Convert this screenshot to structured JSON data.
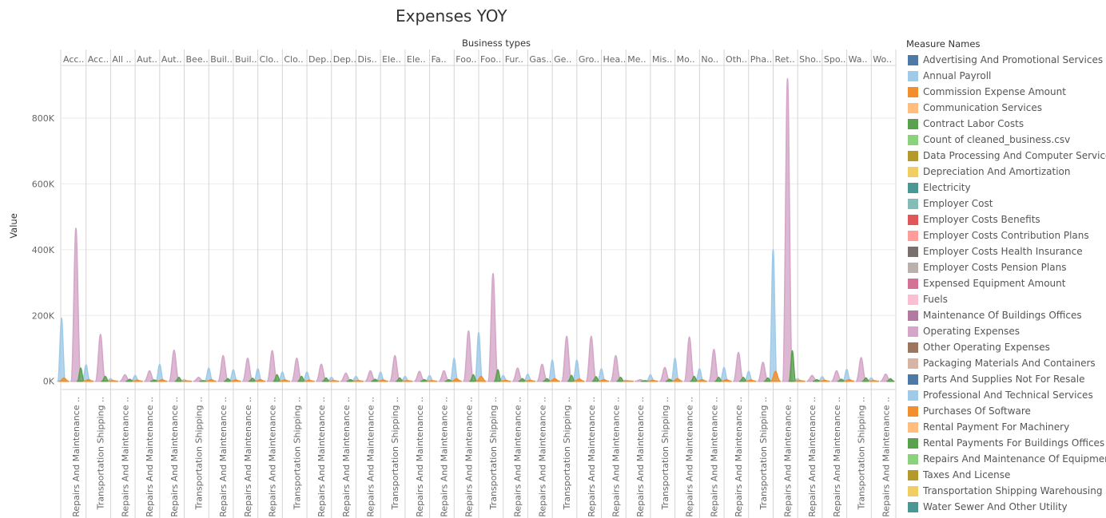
{
  "chart_data": {
    "type": "area",
    "title": "Expenses YOY",
    "column_header_title": "Business types",
    "ylabel": "Value",
    "ylim": [
      -25000,
      960000
    ],
    "yticks": [
      0,
      200000,
      400000,
      600000,
      800000
    ],
    "ytick_labels": [
      "0K",
      "200K",
      "400K",
      "600K",
      "800K"
    ],
    "grid": true,
    "legend_position": "right",
    "legend_title": "Measure Names",
    "business_types": [
      "Acc..",
      "Acc..",
      "All ..",
      "Aut..",
      "Aut..",
      "Bee..",
      "Buil..",
      "Buil..",
      "Clo..",
      "Clo..",
      "Dep..",
      "Dep..",
      "Dis..",
      "Ele..",
      "Ele..",
      "Fa..",
      "Foo..",
      "Foo..",
      "Fur..",
      "Gas..",
      "Ge..",
      "Gro..",
      "Hea..",
      "Me..",
      "Mis..",
      "Mo..",
      "No..",
      "Oth..",
      "Pha..",
      "Ret..",
      "Sho..",
      "Spo..",
      "Wa..",
      "Wo.."
    ],
    "row_labels": [
      "Repairs And Maintenance ..",
      "Transportation Shipping ..",
      "Repairs And Maintenance ..",
      "Repairs And Maintenance ..",
      "Repairs And Maintenance ..",
      "Transportation Shipping ..",
      "Repairs And Maintenance ..",
      "Repairs And Maintenance ..",
      "Repairs And Maintenance ..",
      "Transportation Shipping ..",
      "Repairs And Maintenance ..",
      "Repairs And Maintenance ..",
      "Repairs And Maintenance ..",
      "Transportation Shipping ..",
      "Repairs And Maintenance ..",
      "Repairs And Maintenance ..",
      "Repairs And Maintenance ..",
      "Transportation Shipping ..",
      "Repairs And Maintenance ..",
      "Repairs And Maintenance ..",
      "Transportation Shipping ..",
      "Repairs And Maintenance ..",
      "Repairs And Maintenance ..",
      "Repairs And Maintenance ..",
      "Transportation Shipping ..",
      "Repairs And Maintenance ..",
      "Repairs And Maintenance ..",
      "Repairs And Maintenance ..",
      "Transportation Shipping ..",
      "Repairs And Maintenance ..",
      "Repairs And Maintenance ..",
      "Repairs And Maintenance ..",
      "Transportation Shipping ..",
      "Repairs And Maintenance .."
    ],
    "measures": [
      {
        "name": "Advertising And Promotional Services",
        "color": "#4e79a7"
      },
      {
        "name": "Annual Payroll",
        "color": "#a0cbe8"
      },
      {
        "name": "Commission Expense Amount",
        "color": "#f28e2b"
      },
      {
        "name": "Communication Services",
        "color": "#ffbe7d"
      },
      {
        "name": "Contract Labor Costs",
        "color": "#59a14f"
      },
      {
        "name": "Count of cleaned_business.csv",
        "color": "#8cd17d"
      },
      {
        "name": "Data Processing And Computer Services",
        "color": "#b6992d"
      },
      {
        "name": "Depreciation And Amortization",
        "color": "#f1ce63"
      },
      {
        "name": "Electricity",
        "color": "#499894"
      },
      {
        "name": "Employer Cost",
        "color": "#86bcb6"
      },
      {
        "name": "Employer Costs Benefits",
        "color": "#e15759"
      },
      {
        "name": "Employer Costs Contribution Plans",
        "color": "#ff9d9a"
      },
      {
        "name": "Employer Costs Health Insurance",
        "color": "#79706e"
      },
      {
        "name": "Employer Costs Pension Plans",
        "color": "#bab0ac"
      },
      {
        "name": "Expensed Equipment Amount",
        "color": "#d37295"
      },
      {
        "name": "Fuels",
        "color": "#fabfd2"
      },
      {
        "name": "Maintenance Of Buildings Offices",
        "color": "#b07aa1"
      },
      {
        "name": "Operating Expenses",
        "color": "#d4a6c8"
      },
      {
        "name": "Other Operating Expenses",
        "color": "#9d7660"
      },
      {
        "name": "Packaging Materials And Containers",
        "color": "#d7b5a6"
      },
      {
        "name": "Parts And Supplies Not For Resale",
        "color": "#4e79a7"
      },
      {
        "name": "Professional And Technical Services",
        "color": "#a0cbe8"
      },
      {
        "name": "Purchases Of Software",
        "color": "#f28e2b"
      },
      {
        "name": "Rental Payment For Machinery",
        "color": "#ffbe7d"
      },
      {
        "name": "Rental Payments For Buildings Offices",
        "color": "#59a14f"
      },
      {
        "name": "Repairs And Maintenance Of Equipment",
        "color": "#8cd17d"
      },
      {
        "name": "Taxes And License",
        "color": "#b6992d"
      },
      {
        "name": "Transportation Shipping Warehousing",
        "color": "#f1ce63"
      },
      {
        "name": "Water Sewer And Other Utility",
        "color": "#499894"
      }
    ],
    "series": [
      {
        "name": "Operating Expenses",
        "color": "#d4a6c8",
        "values": [
          465000,
          143000,
          20000,
          32000,
          95000,
          12000,
          78000,
          70000,
          93000,
          70000,
          52000,
          25000,
          32000,
          78000,
          30000,
          32000,
          153000,
          328000,
          40000,
          52000,
          137000,
          137000,
          78000,
          5000,
          42000,
          135000,
          97000,
          88000,
          58000,
          920000,
          18000,
          32000,
          72000,
          22000
        ]
      },
      {
        "name": "Annual Payroll",
        "color": "#a0cbe8",
        "values": [
          192000,
          50000,
          8000,
          18000,
          52000,
          5000,
          40000,
          35000,
          38000,
          28000,
          28000,
          12000,
          15000,
          28000,
          15000,
          18000,
          70000,
          148000,
          18000,
          22000,
          65000,
          65000,
          38000,
          3000,
          20000,
          70000,
          38000,
          42000,
          30000,
          400000,
          8000,
          14000,
          36000,
          10000
        ]
      },
      {
        "name": "Rental Payments For Buildings Offices",
        "color": "#59a14f",
        "values": [
          40000,
          15000,
          6000,
          4000,
          12000,
          2000,
          8000,
          9000,
          20000,
          15000,
          10000,
          5000,
          6000,
          10000,
          5000,
          5000,
          20000,
          35000,
          8000,
          8000,
          18000,
          14000,
          12000,
          2000,
          6000,
          15000,
          12000,
          12000,
          10000,
          93000,
          5000,
          6000,
          10000,
          8000
        ]
      },
      {
        "name": "Commission Expense Amount",
        "color": "#f28e2b",
        "values": [
          10000,
          5000,
          2000,
          3000,
          5000,
          1000,
          5000,
          4000,
          5000,
          4000,
          3000,
          2000,
          2000,
          4000,
          2000,
          2000,
          8000,
          15000,
          3000,
          3000,
          8000,
          7000,
          5000,
          1000,
          3000,
          8000,
          5000,
          5000,
          4000,
          30000,
          2000,
          3000,
          5000,
          2000
        ]
      }
    ]
  }
}
